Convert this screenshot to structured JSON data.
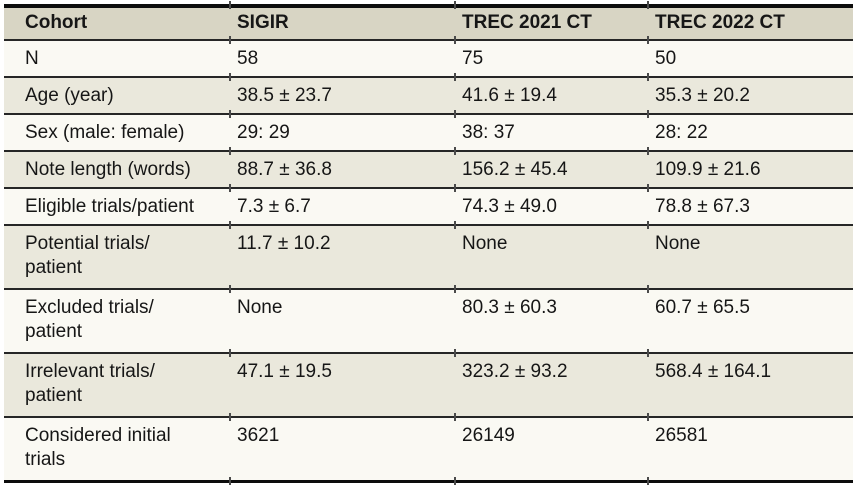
{
  "table": {
    "columns": [
      "Cohort",
      "SIGIR",
      "TREC 2021 CT",
      "TREC 2022 CT"
    ],
    "rows": [
      {
        "label": "N",
        "values": [
          "58",
          "75",
          "50"
        ],
        "tall": false
      },
      {
        "label": "Age (year)",
        "values": [
          "38.5 ± 23.7",
          "41.6 ± 19.4",
          "35.3 ± 20.2"
        ],
        "tall": false
      },
      {
        "label": "Sex (male: female)",
        "values": [
          "29: 29",
          "38: 37",
          "28: 22"
        ],
        "tall": false
      },
      {
        "label": "Note length (words)",
        "values": [
          "88.7 ± 36.8",
          "156.2 ± 45.4",
          "109.9 ± 21.6"
        ],
        "tall": false
      },
      {
        "label": "Eligible trials/patient",
        "values": [
          "7.3 ± 6.7",
          "74.3 ± 49.0",
          "78.8 ± 67.3"
        ],
        "tall": false
      },
      {
        "label": "Potential trials/\npatient",
        "values": [
          "11.7 ± 10.2",
          "None",
          "None"
        ],
        "tall": true
      },
      {
        "label": "Excluded trials/\npatient",
        "values": [
          "None",
          "80.3 ± 60.3",
          "60.7 ± 65.5"
        ],
        "tall": true
      },
      {
        "label": "Irrelevant trials/\npatient",
        "values": [
          "47.1 ± 19.5",
          "323.2 ± 93.2",
          "568.4 ± 164.1"
        ],
        "tall": true
      },
      {
        "label": "Considered initial\ntrials",
        "values": [
          "3621",
          "26149",
          "26581"
        ],
        "tall": true
      }
    ],
    "colors": {
      "header_bg": "#d8d5c4",
      "row_beige_bg": "#eae8dc",
      "row_white_bg": "#faf9f3",
      "rule": "#262626",
      "outer_rule": "#0c0c0c",
      "text": "#161616"
    }
  }
}
